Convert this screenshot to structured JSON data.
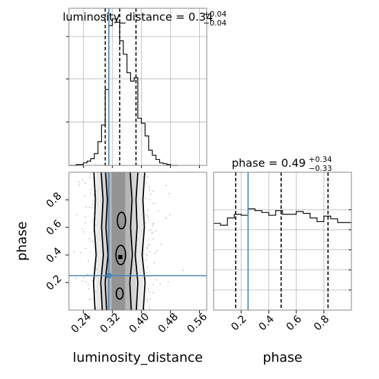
{
  "chart_data": {
    "type": "corner",
    "parameters": [
      "luminosity_distance",
      "phase"
    ],
    "truth": {
      "luminosity_distance": 0.31,
      "phase": 0.25
    },
    "panels": {
      "luminosity_distance_hist": {
        "title_name": "luminosity_distance",
        "title_value": "0.34",
        "title_plus": "+0.04",
        "title_minus": "−0.04",
        "xlim": [
          0.2,
          0.58
        ],
        "bin_edges": [
          0.2,
          0.21,
          0.22,
          0.23,
          0.24,
          0.25,
          0.26,
          0.27,
          0.28,
          0.29,
          0.3,
          0.31,
          0.32,
          0.33,
          0.34,
          0.35,
          0.36,
          0.37,
          0.38,
          0.39,
          0.4,
          0.41,
          0.42,
          0.43,
          0.44,
          0.45,
          0.46,
          0.47,
          0.48,
          0.49,
          0.5
        ],
        "counts": [
          0,
          0,
          1,
          1,
          3,
          5,
          8,
          14,
          28,
          48,
          90,
          166,
          174,
          170,
          148,
          132,
          110,
          100,
          104,
          56,
          50,
          35,
          18,
          12,
          7,
          3,
          2,
          1,
          0,
          0
        ],
        "ymax": 180,
        "quantiles": [
          0.3,
          0.34,
          0.385
        ]
      },
      "phase_hist": {
        "title_name": "phase",
        "title_value": "0.49",
        "title_plus": "+0.34",
        "title_minus": "−0.33",
        "xlim": [
          0,
          1
        ],
        "bin_edges": [
          0.0,
          0.05,
          0.1,
          0.15,
          0.2,
          0.25,
          0.3,
          0.35,
          0.4,
          0.45,
          0.5,
          0.55,
          0.6,
          0.65,
          0.7,
          0.75,
          0.8,
          0.85,
          0.9,
          0.95,
          1.0
        ],
        "counts": [
          0.95,
          0.93,
          1.01,
          1.05,
          1.04,
          1.11,
          1.09,
          1.07,
          1.04,
          1.09,
          1.05,
          1.05,
          1.08,
          1.06,
          1.01,
          0.97,
          1.03,
          1.0,
          0.96,
          0.96
        ],
        "ymax": 1.45,
        "quantiles": [
          0.16,
          0.49,
          0.83
        ]
      },
      "joint": {
        "xlim": [
          0.2,
          0.58
        ],
        "ylim": [
          0,
          1
        ]
      }
    },
    "x_ticks": [
      0.24,
      0.32,
      0.4,
      0.48,
      0.56
    ],
    "x_tick_labels": [
      "0.24",
      "0.32",
      "0.40",
      "0.48",
      "0.56"
    ],
    "y_ticks": [
      0.2,
      0.4,
      0.6,
      0.8
    ],
    "y_tick_labels": [
      "0.2",
      "0.4",
      "0.6",
      "0.8"
    ],
    "phase_ticks": [
      0.2,
      0.4,
      0.6,
      0.8
    ],
    "phase_tick_labels": [
      "0.2",
      "0.4",
      "0.6",
      "0.8"
    ],
    "xlabel_left": "luminosity_distance",
    "xlabel_right": "phase",
    "ylabel": "phase",
    "colors": {
      "truth": "#4682b4",
      "frame": "#808080"
    }
  }
}
